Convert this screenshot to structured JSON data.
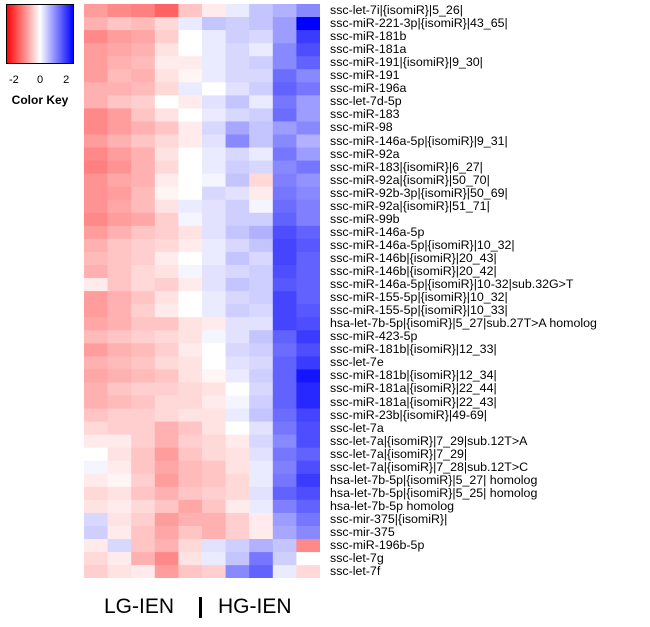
{
  "chart_data": {
    "type": "heatmap",
    "title": "",
    "rows": [
      "ssc-let-7i|{isomiR}|5_26|",
      "ssc-miR-221-3p|{isomiR}|43_65|",
      "ssc-miR-181b",
      "ssc-miR-181a",
      "ssc-miR-191|{isomiR}|9_30|",
      "ssc-miR-191",
      "ssc-miR-196a",
      "ssc-let-7d-5p",
      "ssc-miR-183",
      "ssc-miR-98",
      "ssc-miR-146a-5p|{isomiR}|9_31|",
      "ssc-miR-92a",
      "ssc-miR-183|{isomiR}|6_27|",
      "ssc-miR-92a|{isomiR}|50_70|",
      "ssc-miR-92b-3p|{isomiR}|50_69|",
      "ssc-miR-92a|{isomiR}|51_71|",
      "ssc-miR-99b",
      "ssc-miR-146a-5p",
      "ssc-miR-146a-5p|{isomiR}|10_32|",
      "ssc-miR-146b|{isomiR}|20_43|",
      "ssc-miR-146b|{isomiR}|20_42|",
      "ssc-miR-146a-5p|{isomiR}|10-32|sub.32G>T",
      "ssc-miR-155-5p|{isomiR}|10_32|",
      "ssc-miR-155-5p|{isomiR}|10_33|",
      "hsa-let-7b-5p|{isomiR}|5_27|sub.27T>A homolog",
      "ssc-miR-423-5p",
      "ssc-miR-181b|{isomiR}|12_33|",
      "ssc-let-7e",
      "ssc-miR-181b|{isomiR}|12_34|",
      "ssc-miR-181a|{isomiR}|22_44|",
      "ssc-miR-181a|{isomiR}|22_43|",
      "ssc-miR-23b|{isomiR}|49-69|",
      "ssc-let-7a",
      "ssc-let-7a|{isomiR}|7_29|sub.12T>A",
      "ssc-let-7a|{isomiR}|7_29|",
      "ssc-let-7a|{isomiR}|7_28|sub.12T>C",
      "hsa-let-7b-5p|{isomiR}|5_27| homolog",
      "hsa-let-7b-5p|{isomiR}|5_25| homolog",
      "hsa-let-7b-5p homolog",
      "ssc-mir-375|{isomiR}|",
      "ssc-mir-375",
      "ssc-miR-196b-5p",
      "ssc-let-7g",
      "ssc-let-7f"
    ],
    "columns": 10,
    "groups": [
      {
        "name": "LG-IEN",
        "columns": 4
      },
      {
        "name": "HG-IEN",
        "columns": 6
      }
    ],
    "values": [
      [
        -1.0,
        -1.2,
        -1.3,
        -1.6,
        -0.6,
        -0.2,
        0.2,
        0.6,
        0.8,
        1.2
      ],
      [
        -0.8,
        -0.6,
        -0.7,
        -0.4,
        0.2,
        0.6,
        0.5,
        0.6,
        1.0,
        2.6
      ],
      [
        -1.2,
        -1.0,
        -0.9,
        -0.5,
        0.0,
        0.2,
        0.5,
        0.4,
        1.0,
        2.0
      ],
      [
        -1.0,
        -0.9,
        -0.8,
        -0.3,
        0.0,
        0.2,
        0.4,
        0.2,
        1.2,
        1.8
      ],
      [
        -1.0,
        -0.8,
        -0.7,
        -0.2,
        -0.2,
        0.2,
        0.4,
        0.5,
        1.2,
        1.6
      ],
      [
        -1.0,
        -0.7,
        -0.8,
        -0.3,
        -0.1,
        0.2,
        0.4,
        0.4,
        1.5,
        1.2
      ],
      [
        -0.8,
        -0.8,
        -0.7,
        -0.4,
        0.2,
        0.0,
        0.3,
        0.5,
        1.6,
        1.4
      ],
      [
        -0.8,
        -0.6,
        -0.5,
        0.0,
        -0.2,
        0.3,
        0.6,
        0.2,
        1.4,
        1.0
      ],
      [
        -1.2,
        -1.0,
        -0.6,
        -0.3,
        0.0,
        0.2,
        0.4,
        0.5,
        1.5,
        1.0
      ],
      [
        -1.2,
        -1.0,
        -0.8,
        -0.6,
        -0.2,
        0.4,
        0.9,
        0.6,
        1.0,
        1.2
      ],
      [
        -1.0,
        -0.8,
        -0.6,
        -0.4,
        -0.2,
        0.3,
        1.2,
        0.6,
        1.2,
        0.8
      ],
      [
        -1.2,
        -1.0,
        -0.8,
        -0.3,
        0.0,
        0.2,
        0.4,
        0.2,
        1.4,
        1.0
      ],
      [
        -1.3,
        -1.1,
        -0.8,
        -0.4,
        0.0,
        0.2,
        0.5,
        0.4,
        1.2,
        1.4
      ],
      [
        -1.1,
        -0.9,
        -0.8,
        -0.2,
        0.0,
        0.1,
        0.6,
        -0.4,
        1.3,
        1.1
      ],
      [
        -1.1,
        -1.0,
        -0.7,
        -0.1,
        0.0,
        0.4,
        0.3,
        -0.2,
        1.4,
        1.2
      ],
      [
        -1.1,
        -0.9,
        -0.7,
        -0.3,
        0.2,
        0.3,
        0.5,
        0.1,
        1.5,
        1.3
      ],
      [
        -1.2,
        -1.0,
        -0.9,
        -0.5,
        0.1,
        0.3,
        0.5,
        0.5,
        1.6,
        1.3
      ],
      [
        -1.0,
        -0.8,
        -0.6,
        -0.5,
        -0.3,
        0.3,
        0.6,
        0.8,
        1.8,
        1.6
      ],
      [
        -0.8,
        -0.6,
        -0.5,
        -0.4,
        -0.2,
        0.2,
        0.4,
        0.6,
        1.9,
        1.7
      ],
      [
        -0.7,
        -0.6,
        -0.5,
        -0.2,
        0.0,
        0.2,
        0.6,
        0.4,
        1.9,
        1.6
      ],
      [
        -0.8,
        -0.6,
        -0.4,
        -0.3,
        0.1,
        0.3,
        0.4,
        0.5,
        1.8,
        1.6
      ],
      [
        -0.2,
        -0.6,
        -0.4,
        -0.5,
        -0.2,
        0.3,
        0.6,
        0.5,
        1.7,
        1.6
      ],
      [
        -1.0,
        -0.8,
        -0.6,
        -0.3,
        0.0,
        0.2,
        0.4,
        0.5,
        1.9,
        1.6
      ],
      [
        -1.0,
        -0.8,
        -0.5,
        -0.2,
        0.0,
        0.2,
        0.5,
        0.4,
        1.9,
        1.7
      ],
      [
        -0.9,
        -0.8,
        -0.6,
        -0.6,
        -0.3,
        -0.2,
        0.3,
        0.3,
        1.9,
        1.8
      ],
      [
        -0.7,
        -0.6,
        -0.5,
        -0.4,
        -0.3,
        0.1,
        0.3,
        0.6,
        1.6,
        2.0
      ],
      [
        -1.0,
        -0.8,
        -0.7,
        -0.5,
        -0.2,
        0.0,
        0.4,
        0.5,
        1.5,
        1.8
      ],
      [
        -0.8,
        -0.7,
        -0.6,
        -0.4,
        -0.3,
        0.0,
        0.3,
        0.4,
        1.6,
        2.0
      ],
      [
        -0.9,
        -0.8,
        -0.7,
        -0.6,
        -0.3,
        -0.1,
        0.2,
        0.5,
        1.6,
        2.4
      ],
      [
        -0.8,
        -0.6,
        -0.5,
        -0.5,
        -0.4,
        -0.3,
        0.0,
        0.4,
        1.6,
        2.2
      ],
      [
        -0.8,
        -0.7,
        -0.6,
        -0.4,
        -0.4,
        -0.2,
        0.1,
        0.5,
        1.6,
        2.2
      ],
      [
        -0.6,
        -0.5,
        -0.5,
        -0.4,
        -0.3,
        -0.3,
        0.2,
        0.6,
        1.5,
        1.9
      ],
      [
        -0.4,
        -0.5,
        -0.5,
        -0.8,
        -0.6,
        -0.3,
        0.0,
        0.3,
        1.4,
        1.8
      ],
      [
        -0.2,
        -0.2,
        -0.5,
        -0.8,
        -0.5,
        -0.4,
        -0.2,
        0.4,
        1.2,
        1.8
      ],
      [
        0.0,
        -0.3,
        -0.6,
        -1.0,
        -0.6,
        -0.4,
        -0.3,
        0.3,
        1.4,
        1.6
      ],
      [
        0.1,
        -0.2,
        -0.6,
        -0.9,
        -0.7,
        -0.6,
        -0.3,
        0.2,
        1.3,
        1.8
      ],
      [
        -0.2,
        -0.1,
        -0.5,
        -1.0,
        -0.7,
        -0.6,
        -0.4,
        0.2,
        1.4,
        2.0
      ],
      [
        -0.4,
        -0.3,
        -0.6,
        -0.8,
        -0.6,
        -0.5,
        -0.4,
        0.3,
        1.6,
        1.8
      ],
      [
        -0.3,
        -0.2,
        -0.4,
        -0.6,
        -0.9,
        -0.6,
        -0.2,
        0.2,
        1.3,
        1.6
      ],
      [
        0.4,
        -0.3,
        -0.5,
        -1.0,
        -0.8,
        -0.8,
        -0.5,
        -0.2,
        1.0,
        1.4
      ],
      [
        0.5,
        -0.2,
        -0.6,
        -0.9,
        -0.6,
        -0.8,
        -0.5,
        -0.2,
        0.9,
        1.2
      ],
      [
        -0.2,
        0.4,
        -0.6,
        -0.8,
        -0.4,
        0.3,
        0.5,
        0.8,
        0.6,
        -1.2
      ],
      [
        -0.4,
        -0.2,
        -0.8,
        -1.2,
        -0.3,
        0.2,
        0.6,
        1.4,
        0.5,
        0.0
      ],
      [
        -0.5,
        -0.3,
        -0.2,
        -1.0,
        -0.6,
        -0.5,
        1.2,
        1.6,
        0.2,
        -0.4
      ]
    ],
    "color_scale": {
      "min": -2.6,
      "mid": 0,
      "max": 2.6,
      "low_color": "#ff0000",
      "mid_color": "#ffffff",
      "high_color": "#0000ff"
    },
    "color_key": {
      "title": "Color Key",
      "ticks": [
        "-2",
        "0",
        "2"
      ],
      "tick_values": [
        -2,
        0,
        2
      ],
      "range": [
        -2.6,
        2.6
      ]
    }
  }
}
